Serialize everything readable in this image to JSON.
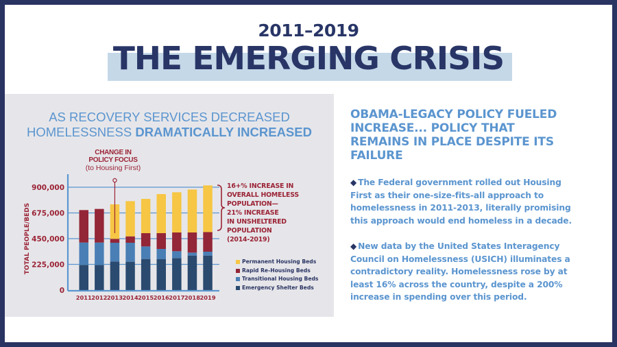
{
  "header": {
    "years": "2011–2019",
    "title": "THE EMERGING CRISIS"
  },
  "panel": {
    "title_line1": "AS RECOVERY SERVICES DECREASED",
    "title_line2_normal": "HOMELESSNESS ",
    "title_line2_bold": "DRAMATICALLY INCREASED",
    "policy_note": {
      "line1": "CHANGE IN",
      "line2": "POLICY FOCUS",
      "line3": "(to Housing First)"
    },
    "bracket_annotation": [
      "16+% INCREASE IN",
      "OVERALL HOMELESS",
      "POPULATION—",
      "21% INCREASE",
      "IN UNSHELTERED",
      "POPULATION",
      "(2014-2019)"
    ]
  },
  "colors": {
    "navy": "#283566",
    "accent_blue": "#5b95cf",
    "maroon": "#9b2335",
    "panel_bg": "#e6e6ea",
    "band": "#c5d8e8",
    "axis_blue": "#5b95cf"
  },
  "chart_data": {
    "type": "bar",
    "stacked": true,
    "title": "AS RECOVERY SERVICES DECREASED HOMELESSNESS DRAMATICALLY INCREASED",
    "xlabel": "",
    "ylabel": "TOTAL PEOPLE/BEDS",
    "categories": [
      "2011",
      "2012",
      "2013",
      "2014",
      "2015",
      "2016",
      "2017",
      "2018",
      "2019"
    ],
    "ylim": [
      0,
      900000
    ],
    "yticks": [
      0,
      225000,
      450000,
      675000,
      900000
    ],
    "ytick_labels": [
      "0",
      "225,000",
      "450,000",
      "675,000",
      "900,000"
    ],
    "grid": true,
    "legend_position": "bottom-right",
    "series": [
      {
        "name": "Emergency Shelter Beds",
        "color": "#2b4a6f",
        "values": [
          220000,
          220000,
          250000,
          248000,
          272000,
          270000,
          280000,
          302000,
          302000
        ]
      },
      {
        "name": "Transitional Housing Beds",
        "color": "#4a7fb5",
        "values": [
          196000,
          196000,
          164000,
          166000,
          110000,
          90000,
          60000,
          26000,
          34000
        ]
      },
      {
        "name": "Rapid Re-Housing Beds",
        "color": "#932637",
        "values": [
          284000,
          294000,
          34000,
          56000,
          116000,
          138000,
          164000,
          176000,
          172000
        ]
      },
      {
        "name": "Permanent Housing Beds",
        "color": "#f6c644",
        "values": [
          0,
          0,
          302000,
          308000,
          300000,
          342000,
          352000,
          376000,
          408000
        ]
      }
    ],
    "legend_order": [
      "Permanent Housing Beds",
      "Rapid Re-Housing Beds",
      "Transitional Housing Beds",
      "Emergency Shelter Beds"
    ],
    "annotations": [
      {
        "text": "CHANGE IN POLICY FOCUS (to Housing First)",
        "x": "2013"
      },
      {
        "text": "16+% INCREASE IN OVERALL HOMELESS POPULATION— 21% INCREASE IN UNSHELTERED POPULATION (2014-2019)",
        "x": "2019"
      }
    ]
  },
  "right": {
    "heading_lines": [
      "OBAMA-LEGACY POLICY FUELED",
      "INCREASE... POLICY THAT",
      "REMAINS IN PLACE DESPITE ITS",
      "FAILURE"
    ],
    "bullet_icon": "diamond-bullet-icon",
    "para1_lines": [
      "The Federal government rolled out Housing",
      "First as their one-size-fits-all approach to",
      "homelessness in 2011-2013, literally promising",
      "this approach would end homeless in a decade."
    ],
    "para2_lines": [
      "New data by the United States Interagency",
      "Council on Homelessness (USICH) illuminates a",
      "contradictory reality. Homelessness rose by at",
      "least 16% across the country, despite a 200%",
      "increase in spending over this period."
    ]
  }
}
